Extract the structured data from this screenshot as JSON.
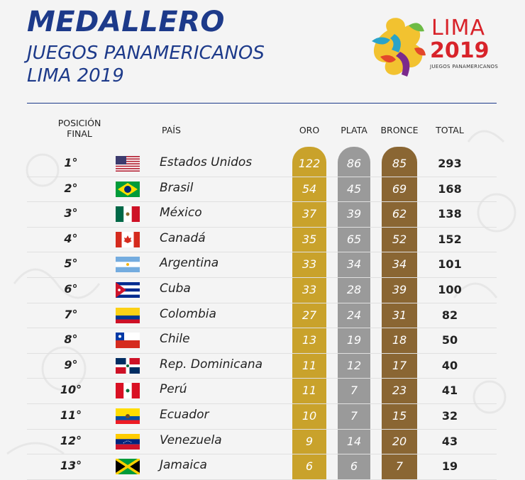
{
  "header": {
    "title": "MEDALLERO",
    "subtitle_line1": "JUEGOS PANAMERICANOS",
    "subtitle_line2": "LIMA 2019"
  },
  "logo": {
    "line1": "LIMA",
    "line2": "2019",
    "line3": "JUEGOS PANAMERICANOS",
    "colors": [
      "#f2c230",
      "#2aa3c8",
      "#7b2a8c",
      "#e3472b",
      "#6dbb45"
    ]
  },
  "columns": {
    "position": "POSICIÓN",
    "position_sub": "FINAL",
    "country": "PAÍS",
    "gold": "ORO",
    "silver": "PLATA",
    "bronze": "BRONCE",
    "total": "TOTAL"
  },
  "colors": {
    "title": "#1d3a8a",
    "gold": "#c9a22b",
    "silver": "#9a9a9a",
    "bronze": "#8a6633",
    "logo_text": "#d8232a"
  },
  "rows": [
    {
      "position": "1°",
      "country": "Estados Unidos",
      "flag": "usa",
      "gold": "122",
      "silver": "86",
      "bronze": "85",
      "total": "293"
    },
    {
      "position": "2°",
      "country": "Brasil",
      "flag": "brazil",
      "gold": "54",
      "silver": "45",
      "bronze": "69",
      "total": "168"
    },
    {
      "position": "3°",
      "country": "México",
      "flag": "mexico",
      "gold": "37",
      "silver": "39",
      "bronze": "62",
      "total": "138"
    },
    {
      "position": "4°",
      "country": "Canadá",
      "flag": "canada",
      "gold": "35",
      "silver": "65",
      "bronze": "52",
      "total": "152"
    },
    {
      "position": "5°",
      "country": "Argentina",
      "flag": "argentina",
      "gold": "33",
      "silver": "34",
      "bronze": "34",
      "total": "101"
    },
    {
      "position": "6°",
      "country": "Cuba",
      "flag": "cuba",
      "gold": "33",
      "silver": "28",
      "bronze": "39",
      "total": "100"
    },
    {
      "position": "7°",
      "country": "Colombia",
      "flag": "colombia",
      "gold": "27",
      "silver": "24",
      "bronze": "31",
      "total": "82"
    },
    {
      "position": "8°",
      "country": "Chile",
      "flag": "chile",
      "gold": "13",
      "silver": "19",
      "bronze": "18",
      "total": "50"
    },
    {
      "position": "9°",
      "country": "Rep. Dominicana",
      "flag": "dominican",
      "gold": "11",
      "silver": "12",
      "bronze": "17",
      "total": "40"
    },
    {
      "position": "10°",
      "country": "Perú",
      "flag": "peru",
      "gold": "11",
      "silver": "7",
      "bronze": "23",
      "total": "41"
    },
    {
      "position": "11°",
      "country": "Ecuador",
      "flag": "ecuador",
      "gold": "10",
      "silver": "7",
      "bronze": "15",
      "total": "32"
    },
    {
      "position": "12°",
      "country": "Venezuela",
      "flag": "venezuela",
      "gold": "9",
      "silver": "14",
      "bronze": "20",
      "total": "43"
    },
    {
      "position": "13°",
      "country": "Jamaica",
      "flag": "jamaica",
      "gold": "6",
      "silver": "6",
      "bronze": "7",
      "total": "19"
    }
  ]
}
